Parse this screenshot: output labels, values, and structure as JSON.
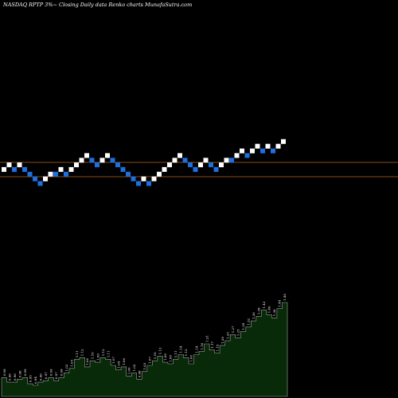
{
  "chart_data": {
    "type": "renko",
    "title": "NASDAQ RPTP 3%~  Closing Daily data  Renko  charts MunafaSutra.com",
    "colors": {
      "background": "#000000",
      "up_brick": "#ffffff",
      "down_brick": "#1e6fe0",
      "reference_line": "#b5651d",
      "volume_fill": "#082a08",
      "volume_outline": "#9aa89a",
      "label_text": "#ffffff"
    },
    "reference_lines": [
      {
        "level": 1.09
      },
      {
        "level": 1.0
      }
    ],
    "bricks": [
      {
        "dir": "up",
        "level": 17
      },
      {
        "dir": "up",
        "level": 18
      },
      {
        "dir": "down",
        "level": 17
      },
      {
        "dir": "up",
        "level": 18
      },
      {
        "dir": "down",
        "level": 17
      },
      {
        "dir": "down",
        "level": 16
      },
      {
        "dir": "down",
        "level": 15
      },
      {
        "dir": "down",
        "level": 14
      },
      {
        "dir": "up",
        "level": 15
      },
      {
        "dir": "up",
        "level": 16
      },
      {
        "dir": "down",
        "level": 16
      },
      {
        "dir": "up",
        "level": 17
      },
      {
        "dir": "down",
        "level": 16
      },
      {
        "dir": "up",
        "level": 17
      },
      {
        "dir": "up",
        "level": 18
      },
      {
        "dir": "up",
        "level": 19
      },
      {
        "dir": "up",
        "level": 20
      },
      {
        "dir": "down",
        "level": 19
      },
      {
        "dir": "down",
        "level": 18
      },
      {
        "dir": "up",
        "level": 19
      },
      {
        "dir": "up",
        "level": 20
      },
      {
        "dir": "down",
        "level": 19
      },
      {
        "dir": "down",
        "level": 18
      },
      {
        "dir": "down",
        "level": 17
      },
      {
        "dir": "down",
        "level": 16
      },
      {
        "dir": "down",
        "level": 15
      },
      {
        "dir": "down",
        "level": 14
      },
      {
        "dir": "up",
        "level": 15
      },
      {
        "dir": "down",
        "level": 14
      },
      {
        "dir": "up",
        "level": 15
      },
      {
        "dir": "up",
        "level": 16
      },
      {
        "dir": "up",
        "level": 17
      },
      {
        "dir": "up",
        "level": 18
      },
      {
        "dir": "up",
        "level": 19
      },
      {
        "dir": "up",
        "level": 20
      },
      {
        "dir": "down",
        "level": 19
      },
      {
        "dir": "down",
        "level": 18
      },
      {
        "dir": "down",
        "level": 17
      },
      {
        "dir": "up",
        "level": 18
      },
      {
        "dir": "up",
        "level": 19
      },
      {
        "dir": "down",
        "level": 18
      },
      {
        "dir": "down",
        "level": 17
      },
      {
        "dir": "up",
        "level": 18
      },
      {
        "dir": "up",
        "level": 19
      },
      {
        "dir": "down",
        "level": 19
      },
      {
        "dir": "up",
        "level": 20
      },
      {
        "dir": "up",
        "level": 21
      },
      {
        "dir": "down",
        "level": 20
      },
      {
        "dir": "up",
        "level": 21
      },
      {
        "dir": "up",
        "level": 22
      },
      {
        "dir": "down",
        "level": 21
      },
      {
        "dir": "up",
        "level": 22
      },
      {
        "dir": "down",
        "level": 21
      },
      {
        "dir": "up",
        "level": 22
      },
      {
        "dir": "up",
        "level": 23
      }
    ],
    "volume_labels": [
      "0.99",
      "0.96",
      "0.96",
      "0.98",
      "0.99",
      "0.95",
      "0.94",
      "0.96",
      "0.97",
      "0.99",
      "0.97",
      "0.99",
      "1.02",
      "1.05",
      "1.11",
      "1.12",
      "1.06",
      "1.10",
      "1.09",
      "1.12",
      "1.11",
      "1.07",
      "1.04",
      "1.06",
      "1.00",
      "1.02",
      "0.98",
      "1.03",
      "1.07",
      "1.10",
      "1.13",
      "1.09",
      "1.08",
      "1.11",
      "1.14",
      "1.12",
      "1.08",
      "1.14",
      "1.16",
      "1.21",
      "1.17",
      "1.15",
      "1.20",
      "1.23",
      "1.27",
      "1.25",
      "1.29",
      "1.32",
      "1.36",
      "1.39",
      "1.43",
      "1.40",
      "1.38",
      "1.44",
      "1.48"
    ]
  }
}
